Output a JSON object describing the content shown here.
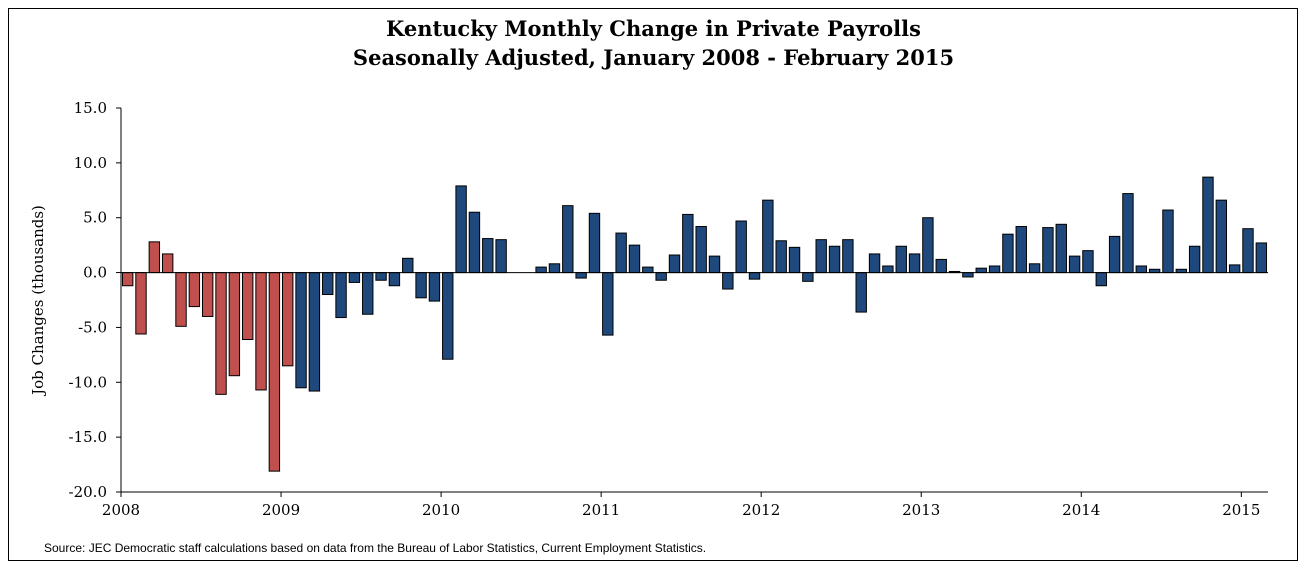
{
  "chart_data": {
    "type": "bar",
    "title": "Kentucky Monthly Change in Private Payrolls",
    "subtitle": "Seasonally Adjusted, January 2008 - February 2015",
    "ylabel": "Job Changes (thousands)",
    "xlabel": "",
    "ylim": [
      -20,
      15
    ],
    "y_ticks": [
      "15.0",
      "10.0",
      "5.0",
      "0.0",
      "-5.0",
      "-10.0",
      "-15.0",
      "-20.0"
    ],
    "x_tick_labels": [
      "2008",
      "2009",
      "2010",
      "2011",
      "2012",
      "2013",
      "2014",
      "2015"
    ],
    "grid": false,
    "legend": "none",
    "colors": {
      "recession": "#C0504D",
      "recovery": "#1F497D"
    },
    "series": [
      {
        "color_key": "recession",
        "values": [
          -1.2,
          -5.6,
          2.8,
          1.7,
          -4.9,
          -3.1,
          -4.0,
          -11.1,
          -9.4,
          -6.1,
          -10.7,
          -18.1,
          -8.5
        ]
      },
      {
        "color_key": "recovery",
        "values": [
          -10.5,
          -10.8,
          -2.0,
          -4.1,
          -0.9,
          -3.8,
          -0.7,
          -1.2,
          1.3,
          -2.3,
          -2.6,
          -7.9,
          7.9,
          5.5,
          3.1,
          3.0,
          0.0,
          0.0,
          0.5,
          0.8,
          6.1,
          -0.5,
          5.4,
          -5.7,
          3.6,
          2.5,
          0.5,
          -0.7,
          1.6,
          5.3,
          4.2,
          1.5,
          -1.5,
          4.7,
          -0.6,
          6.6,
          2.9,
          2.3,
          -0.8,
          3.0,
          2.4,
          3.0,
          -3.6,
          1.7,
          0.6,
          2.4,
          1.7,
          5.0,
          1.2,
          0.1,
          -0.4,
          0.4,
          0.6,
          3.5,
          4.2,
          0.8,
          4.1,
          4.4,
          1.5,
          2.0,
          -1.2,
          3.3,
          7.2,
          0.6,
          0.3,
          5.7,
          0.3,
          2.4,
          8.7,
          6.6,
          0.7,
          4.0,
          2.7
        ]
      }
    ]
  },
  "source_note": "Source: JEC Democratic staff  calculations based on data from the Bureau of Labor Statistics, Current Employment Statistics."
}
